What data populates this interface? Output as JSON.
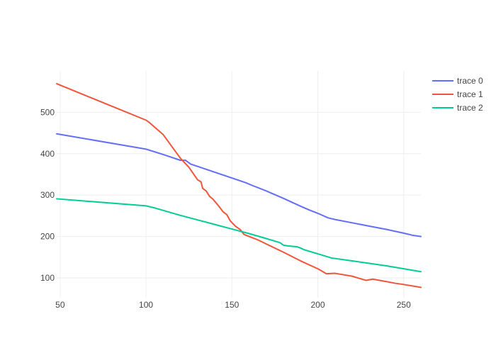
{
  "chart_data": {
    "type": "line",
    "title": "",
    "xlabel": "",
    "ylabel": "",
    "xlim": [
      48,
      260
    ],
    "ylim": [
      52,
      600
    ],
    "xticks": [
      50,
      100,
      150,
      200,
      250
    ],
    "yticks": [
      100,
      200,
      300,
      400,
      500
    ],
    "grid": true,
    "legend_position": "top-right",
    "series": [
      {
        "name": "trace 0",
        "color": "#636efa",
        "points": [
          [
            48,
            448
          ],
          [
            100,
            411
          ],
          [
            110,
            398
          ],
          [
            120,
            384
          ],
          [
            123,
            384
          ],
          [
            126,
            375
          ],
          [
            158,
            330
          ],
          [
            162,
            323
          ],
          [
            170,
            310
          ],
          [
            180,
            292
          ],
          [
            190,
            273
          ],
          [
            195,
            264
          ],
          [
            200,
            256
          ],
          [
            206,
            245
          ],
          [
            210,
            241
          ],
          [
            220,
            233
          ],
          [
            230,
            225
          ],
          [
            240,
            217
          ],
          [
            250,
            208
          ],
          [
            255,
            203
          ],
          [
            260,
            200
          ]
        ]
      },
      {
        "name": "trace 1",
        "color": "#EF553B",
        "points": [
          [
            48,
            569
          ],
          [
            100,
            481
          ],
          [
            102,
            475
          ],
          [
            110,
            446
          ],
          [
            120,
            389
          ],
          [
            125,
            367
          ],
          [
            130,
            337
          ],
          [
            132,
            332
          ],
          [
            133,
            316
          ],
          [
            135,
            310
          ],
          [
            137,
            297
          ],
          [
            139,
            290
          ],
          [
            142,
            275
          ],
          [
            145,
            259
          ],
          [
            147,
            253
          ],
          [
            149,
            238
          ],
          [
            152,
            225
          ],
          [
            155,
            216
          ],
          [
            157,
            205
          ],
          [
            160,
            200
          ],
          [
            165,
            192
          ],
          [
            170,
            182
          ],
          [
            180,
            162
          ],
          [
            190,
            141
          ],
          [
            200,
            122
          ],
          [
            205,
            110
          ],
          [
            210,
            111
          ],
          [
            220,
            104
          ],
          [
            228,
            94
          ],
          [
            232,
            97
          ],
          [
            240,
            91
          ],
          [
            245,
            87
          ],
          [
            250,
            84
          ],
          [
            260,
            77
          ]
        ]
      },
      {
        "name": "trace 2",
        "color": "#00cc96",
        "points": [
          [
            48,
            291
          ],
          [
            100,
            274
          ],
          [
            105,
            269
          ],
          [
            110,
            263
          ],
          [
            120,
            251
          ],
          [
            130,
            240
          ],
          [
            140,
            229
          ],
          [
            150,
            218
          ],
          [
            160,
            207
          ],
          [
            170,
            195
          ],
          [
            178,
            185
          ],
          [
            180,
            179
          ],
          [
            183,
            177
          ],
          [
            188,
            175
          ],
          [
            190,
            172
          ],
          [
            192,
            168
          ],
          [
            200,
            158
          ],
          [
            208,
            148
          ],
          [
            220,
            141
          ],
          [
            230,
            135
          ],
          [
            240,
            129
          ],
          [
            250,
            122
          ],
          [
            260,
            115
          ]
        ]
      }
    ]
  }
}
